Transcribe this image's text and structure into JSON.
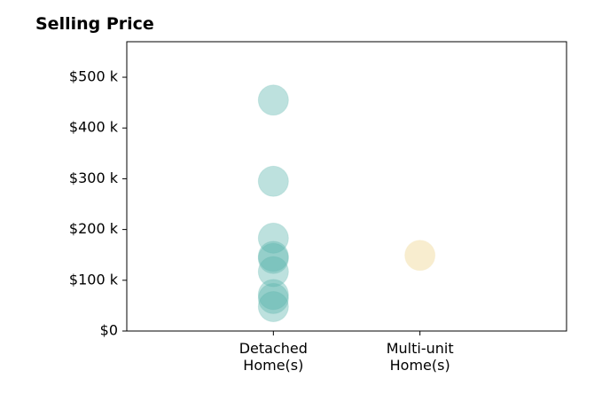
{
  "chart_data": {
    "type": "scatter",
    "title": "Selling Price",
    "xlabel": "",
    "ylabel": "",
    "categories": [
      [
        "Detached",
        "Home(s)"
      ],
      [
        "Multi-unit",
        "Home(s)"
      ]
    ],
    "xlim": [
      -1,
      2
    ],
    "ylim": [
      0,
      570000
    ],
    "yticks": [
      0,
      100000,
      200000,
      300000,
      400000,
      500000
    ],
    "ytick_labels": [
      "$0",
      "$100 k",
      "$200 k",
      "$300 k",
      "$400 k",
      "$500 k"
    ],
    "grid": false,
    "series": [
      {
        "category_index": 0,
        "color": "#5ab4ac",
        "opacity": 0.4,
        "values": [
          455000,
          295000,
          183000,
          147000,
          143000,
          117000,
          72000,
          64000,
          48000
        ]
      },
      {
        "category_index": 1,
        "color": "#f6e8c3",
        "opacity": 0.8,
        "values": [
          149000
        ]
      }
    ]
  }
}
